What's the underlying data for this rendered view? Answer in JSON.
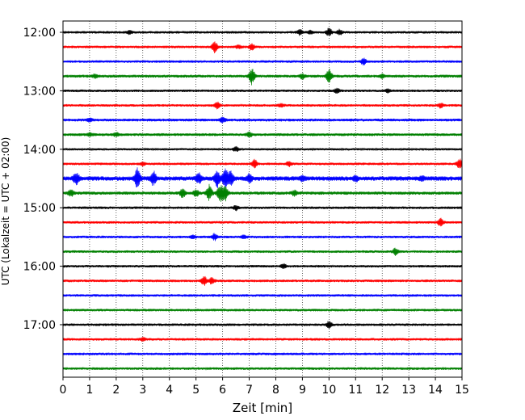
{
  "chart_data": {
    "type": "line",
    "xlabel": "Zeit  [min]",
    "ylabel": "UTC (Lokalzeit = UTC + 02:00)",
    "xlim": [
      0,
      15
    ],
    "x_ticks": [
      "0",
      "1",
      "2",
      "3",
      "4",
      "5",
      "6",
      "7",
      "8",
      "9",
      "10",
      "11",
      "12",
      "13",
      "14",
      "15"
    ],
    "y_ticks": [
      "12:00",
      "13:00",
      "14:00",
      "15:00",
      "16:00",
      "17:00"
    ],
    "trace_interval_min": 15,
    "grid": "vertical dotted",
    "color_cycle": [
      "#000000",
      "#ff0000",
      "#0000ff",
      "#008000"
    ],
    "traces": [
      {
        "start": "12:00",
        "color": "#000000",
        "noise": 1.6,
        "events": [
          [
            2.5,
            2
          ],
          [
            8.9,
            3
          ],
          [
            9.3,
            2
          ],
          [
            10.0,
            5
          ],
          [
            10.4,
            3
          ]
        ]
      },
      {
        "start": "12:15",
        "color": "#ff0000",
        "noise": 1.6,
        "events": [
          [
            5.7,
            7
          ],
          [
            7.1,
            4
          ],
          [
            6.6,
            2
          ]
        ]
      },
      {
        "start": "12:30",
        "color": "#0000ff",
        "noise": 1.6,
        "events": [
          [
            11.3,
            4
          ]
        ]
      },
      {
        "start": "12:45",
        "color": "#008000",
        "noise": 1.8,
        "events": [
          [
            1.2,
            2
          ],
          [
            7.1,
            10
          ],
          [
            10.0,
            9
          ],
          [
            9.0,
            3
          ],
          [
            12.0,
            2
          ]
        ]
      },
      {
        "start": "13:00",
        "color": "#000000",
        "noise": 1.6,
        "events": [
          [
            10.3,
            3
          ],
          [
            12.2,
            2
          ]
        ]
      },
      {
        "start": "13:15",
        "color": "#ff0000",
        "noise": 1.6,
        "events": [
          [
            5.8,
            4
          ],
          [
            8.2,
            2
          ],
          [
            14.2,
            3
          ]
        ]
      },
      {
        "start": "13:30",
        "color": "#0000ff",
        "noise": 1.8,
        "events": [
          [
            1.0,
            2
          ],
          [
            6.0,
            3
          ]
        ]
      },
      {
        "start": "13:45",
        "color": "#008000",
        "noise": 1.8,
        "events": [
          [
            1.0,
            2
          ],
          [
            2.0,
            2
          ],
          [
            7.0,
            3
          ]
        ]
      },
      {
        "start": "14:00",
        "color": "#000000",
        "noise": 1.4,
        "events": [
          [
            6.5,
            3
          ]
        ]
      },
      {
        "start": "14:15",
        "color": "#ff0000",
        "noise": 1.6,
        "events": [
          [
            3.0,
            2
          ],
          [
            7.2,
            5
          ],
          [
            8.5,
            3
          ],
          [
            14.9,
            6
          ]
        ]
      },
      {
        "start": "14:30",
        "color": "#0000ff",
        "noise": 2.8,
        "events": [
          [
            0.5,
            7
          ],
          [
            2.8,
            12
          ],
          [
            3.4,
            8
          ],
          [
            5.1,
            6
          ],
          [
            5.8,
            10
          ],
          [
            6.1,
            12
          ],
          [
            6.3,
            10
          ],
          [
            7.0,
            5
          ],
          [
            9.0,
            3
          ],
          [
            11.0,
            3
          ],
          [
            13.5,
            2
          ]
        ]
      },
      {
        "start": "14:45",
        "color": "#008000",
        "noise": 2.0,
        "events": [
          [
            0.3,
            4
          ],
          [
            4.5,
            6
          ],
          [
            5.0,
            4
          ],
          [
            5.5,
            10
          ],
          [
            5.9,
            12
          ],
          [
            6.1,
            9
          ],
          [
            8.7,
            3
          ]
        ]
      },
      {
        "start": "15:00",
        "color": "#000000",
        "noise": 1.6,
        "events": [
          [
            6.5,
            3
          ]
        ]
      },
      {
        "start": "15:15",
        "color": "#ff0000",
        "noise": 1.6,
        "events": [
          [
            14.2,
            5
          ]
        ]
      },
      {
        "start": "15:30",
        "color": "#0000ff",
        "noise": 1.6,
        "events": [
          [
            4.9,
            2
          ],
          [
            5.7,
            4
          ],
          [
            6.8,
            2
          ]
        ]
      },
      {
        "start": "15:45",
        "color": "#008000",
        "noise": 1.6,
        "events": [
          [
            12.5,
            4
          ]
        ]
      },
      {
        "start": "16:00",
        "color": "#000000",
        "noise": 1.6,
        "events": [
          [
            8.3,
            3
          ]
        ]
      },
      {
        "start": "16:15",
        "color": "#ff0000",
        "noise": 1.6,
        "events": [
          [
            5.3,
            6
          ],
          [
            5.6,
            4
          ]
        ]
      },
      {
        "start": "16:30",
        "color": "#0000ff",
        "noise": 1.6,
        "events": []
      },
      {
        "start": "16:45",
        "color": "#008000",
        "noise": 1.6,
        "events": []
      },
      {
        "start": "17:00",
        "color": "#000000",
        "noise": 1.6,
        "events": [
          [
            10.0,
            4
          ]
        ]
      },
      {
        "start": "17:15",
        "color": "#ff0000",
        "noise": 1.6,
        "events": [
          [
            3.0,
            2
          ]
        ]
      },
      {
        "start": "17:30",
        "color": "#0000ff",
        "noise": 1.6,
        "events": []
      },
      {
        "start": "17:45",
        "color": "#008000",
        "noise": 1.6,
        "events": []
      }
    ]
  }
}
